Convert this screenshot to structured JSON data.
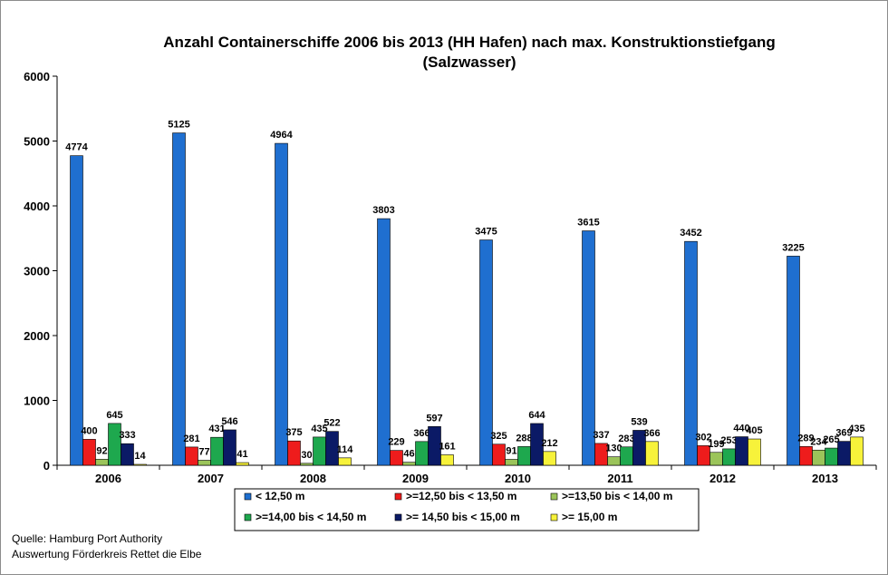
{
  "chart_data": {
    "type": "bar",
    "title_line1": "Anzahl Containerschiffe 2006 bis 2013 (HH Hafen) nach max. Konstruktionstiefgang",
    "title_line2": "(Salzwasser)",
    "categories": [
      "2006",
      "2007",
      "2008",
      "2009",
      "2010",
      "2011",
      "2012",
      "2013"
    ],
    "ylim": [
      0,
      6000
    ],
    "yticks": [
      0,
      1000,
      2000,
      3000,
      4000,
      5000,
      6000
    ],
    "grid": false,
    "legend_position": "bottom",
    "series": [
      {
        "name": "< 12,50 m",
        "color": "#1F6FD0",
        "values": [
          4774,
          5125,
          4964,
          3803,
          3475,
          3615,
          3452,
          3225
        ]
      },
      {
        "name": ">=12,50 bis  < 13,50 m",
        "color": "#EE1C1C",
        "values": [
          400,
          281,
          375,
          229,
          325,
          337,
          302,
          289
        ]
      },
      {
        "name": ">=13,50 bis < 14,00 m",
        "color": "#9BC45A",
        "values": [
          92,
          77,
          30,
          46,
          91,
          130,
          199,
          234
        ]
      },
      {
        "name": ">=14,00 bis < 14,50 m",
        "color": "#1EA84E",
        "values": [
          645,
          431,
          435,
          366,
          288,
          283,
          253,
          265
        ]
      },
      {
        "name": ">= 14,50 bis < 15,00 m",
        "color": "#0B1A66",
        "values": [
          333,
          546,
          522,
          597,
          644,
          539,
          440,
          369
        ]
      },
      {
        "name": ">= 15,00 m",
        "color": "#F7F23A",
        "values": [
          14,
          41,
          114,
          161,
          212,
          366,
          405,
          435
        ]
      }
    ]
  },
  "source": {
    "line1": "Quelle: Hamburg Port Authority",
    "line2": "Auswertung Förderkreis Rettet die Elbe"
  }
}
